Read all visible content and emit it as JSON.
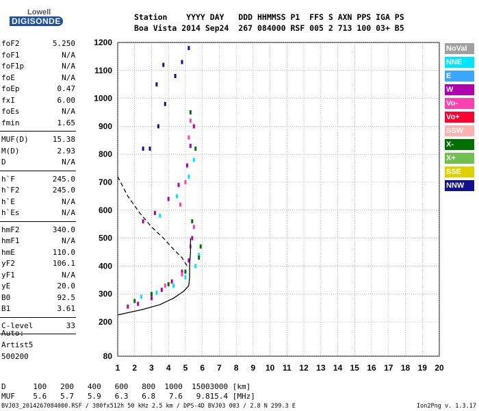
{
  "logo": {
    "line1": "Lowell",
    "line2": "DIGISONDE"
  },
  "header": {
    "line1": "Station    YYYY DAY   DDD HHMMSS P1  FFS S AXN PPS IGA PS",
    "line2": "Boa Vista 2014 Sep24  267 084000 RSF 005 2 713 100 03+ B5"
  },
  "params": [
    [
      {
        "label": "foF2",
        "value": "5.250"
      },
      {
        "label": "foF1",
        "value": "N/A"
      },
      {
        "label": "foF1p",
        "value": "N/A"
      },
      {
        "label": "foE",
        "value": "N/A"
      },
      {
        "label": "foEp",
        "value": "0.47"
      },
      {
        "label": "fxI",
        "value": "6.00"
      },
      {
        "label": "foEs",
        "value": "N/A"
      },
      {
        "label": "fmin",
        "value": "1.65"
      }
    ],
    [
      {
        "label": "MUF(D)",
        "value": "15.38"
      },
      {
        "label": "M(D)",
        "value": "2.93"
      },
      {
        "label": "D",
        "value": "N/A"
      }
    ],
    [
      {
        "label": "h`F",
        "value": "245.0"
      },
      {
        "label": "h`F2",
        "value": "245.0"
      },
      {
        "label": "h`E",
        "value": "N/A"
      },
      {
        "label": "h`Es",
        "value": "N/A"
      }
    ],
    [
      {
        "label": "hmF2",
        "value": "340.0"
      },
      {
        "label": "hmF1",
        "value": "N/A"
      },
      {
        "label": "hmE",
        "value": "110.0"
      },
      {
        "label": "yF2",
        "value": "106.1"
      },
      {
        "label": "yF1",
        "value": "N/A"
      },
      {
        "label": "yE",
        "value": "20.0"
      },
      {
        "label": "B0",
        "value": "92.5"
      },
      {
        "label": "B1",
        "value": "3.61"
      }
    ],
    [
      {
        "label": "C-level",
        "value": "33"
      }
    ]
  ],
  "auto": {
    "line1": "Auto:",
    "line2": "Artist5",
    "line3": "500200"
  },
  "muf_table": {
    "d_label": "D",
    "muf_label": "MUF",
    "d_values": [
      "100",
      "200",
      "400",
      "600",
      "800",
      "1000",
      "1500",
      "3000 [km]"
    ],
    "muf_values": [
      "5.6",
      "5.7",
      "5.9",
      "6.3",
      "6.8",
      "7.6",
      "9.8",
      "15.4 [MHz]"
    ]
  },
  "footer": {
    "left": "BVJ03_2014267084000.RSF / 380fx512h 50 kHz 2.5 km / DPS-4D BVJ03 003 / 2.8 N 299.3 E",
    "right": "Ion2Png v. 1.3.17"
  },
  "legend": [
    {
      "label": "NoVal",
      "color": "#a0a0a0"
    },
    {
      "label": "NNE",
      "color": "#00e5ff"
    },
    {
      "label": "E",
      "color": "#3aa6ff"
    },
    {
      "label": "W",
      "color": "#b000b0"
    },
    {
      "label": "Vo-",
      "color": "#ff40b0"
    },
    {
      "label": "Vo+",
      "color": "#ff0030"
    },
    {
      "label": "SSW",
      "color": "#ffb0b0"
    },
    {
      "label": "X-",
      "color": "#007000"
    },
    {
      "label": "X+",
      "color": "#70c050"
    },
    {
      "label": "SSE",
      "color": "#e0d000"
    },
    {
      "label": "NNW",
      "color": "#101090"
    }
  ],
  "chart_data": {
    "type": "scatter",
    "xlabel": "",
    "ylabel": "",
    "xlim": [
      1,
      20
    ],
    "ylim": [
      80,
      1200
    ],
    "x_ticks": [
      1,
      2,
      3,
      4,
      5,
      6,
      7,
      8,
      9,
      10,
      11,
      12,
      13,
      14,
      15,
      16,
      17,
      18,
      19,
      20
    ],
    "y_ticks": [
      80,
      200,
      300,
      400,
      500,
      600,
      700,
      800,
      900,
      1000,
      1100,
      1200
    ],
    "grid": true,
    "series": [
      {
        "name": "W",
        "values": [
          [
            1.6,
            255
          ],
          [
            2.2,
            265
          ],
          [
            3.0,
            285
          ],
          [
            3.6,
            315
          ],
          [
            4.2,
            345
          ],
          [
            4.8,
            380
          ],
          [
            5.2,
            420
          ],
          [
            5.4,
            500
          ],
          [
            2.5,
            560
          ],
          [
            3.2,
            590
          ],
          [
            4.0,
            640
          ],
          [
            4.6,
            690
          ],
          [
            5.1,
            760
          ],
          [
            5.3,
            830
          ],
          [
            5.5,
            900
          ]
        ]
      },
      {
        "name": "NNE",
        "values": [
          [
            2.4,
            290
          ],
          [
            3.3,
            305
          ],
          [
            4.3,
            330
          ],
          [
            5.0,
            360
          ],
          [
            5.6,
            400
          ],
          [
            5.8,
            440
          ],
          [
            3.5,
            580
          ],
          [
            4.5,
            650
          ],
          [
            5.2,
            720
          ],
          [
            5.5,
            780
          ]
        ]
      },
      {
        "name": "X-",
        "values": [
          [
            2.0,
            275
          ],
          [
            3.0,
            300
          ],
          [
            4.0,
            335
          ],
          [
            5.0,
            380
          ],
          [
            5.8,
            430
          ],
          [
            5.9,
            470
          ],
          [
            5.4,
            560
          ],
          [
            5.6,
            820
          ],
          [
            5.3,
            950
          ]
        ]
      },
      {
        "name": "Vo-",
        "values": [
          [
            3.8,
            330
          ],
          [
            4.8,
            370
          ],
          [
            5.3,
            470
          ],
          [
            5.5,
            540
          ],
          [
            4.7,
            620
          ],
          [
            5.0,
            700
          ],
          [
            5.2,
            860
          ],
          [
            5.3,
            920
          ]
        ]
      },
      {
        "name": "NNW",
        "values": [
          [
            2.9,
            820
          ],
          [
            3.4,
            900
          ],
          [
            3.8,
            980
          ],
          [
            4.4,
            1080
          ],
          [
            4.8,
            1130
          ],
          [
            5.2,
            1180
          ],
          [
            2.5,
            820
          ],
          [
            3.3,
            1050
          ],
          [
            3.7,
            1120
          ]
        ]
      }
    ],
    "fitted_curves": [
      {
        "name": "profile",
        "description": "solid",
        "points": [
          [
            1,
            225
          ],
          [
            2.5,
            245
          ],
          [
            3.5,
            262
          ],
          [
            4.3,
            285
          ],
          [
            4.9,
            310
          ],
          [
            5.2,
            330
          ],
          [
            5.25,
            360
          ],
          [
            5.25,
            400
          ],
          [
            5.3,
            450
          ],
          [
            5.3,
            500
          ]
        ]
      },
      {
        "name": "dashed",
        "description": "dashed",
        "points": [
          [
            1,
            720
          ],
          [
            1.6,
            650
          ],
          [
            2.3,
            590
          ],
          [
            3.0,
            540
          ],
          [
            3.7,
            500
          ],
          [
            4.3,
            460
          ],
          [
            4.8,
            430
          ],
          [
            5.1,
            400
          ]
        ]
      }
    ]
  }
}
